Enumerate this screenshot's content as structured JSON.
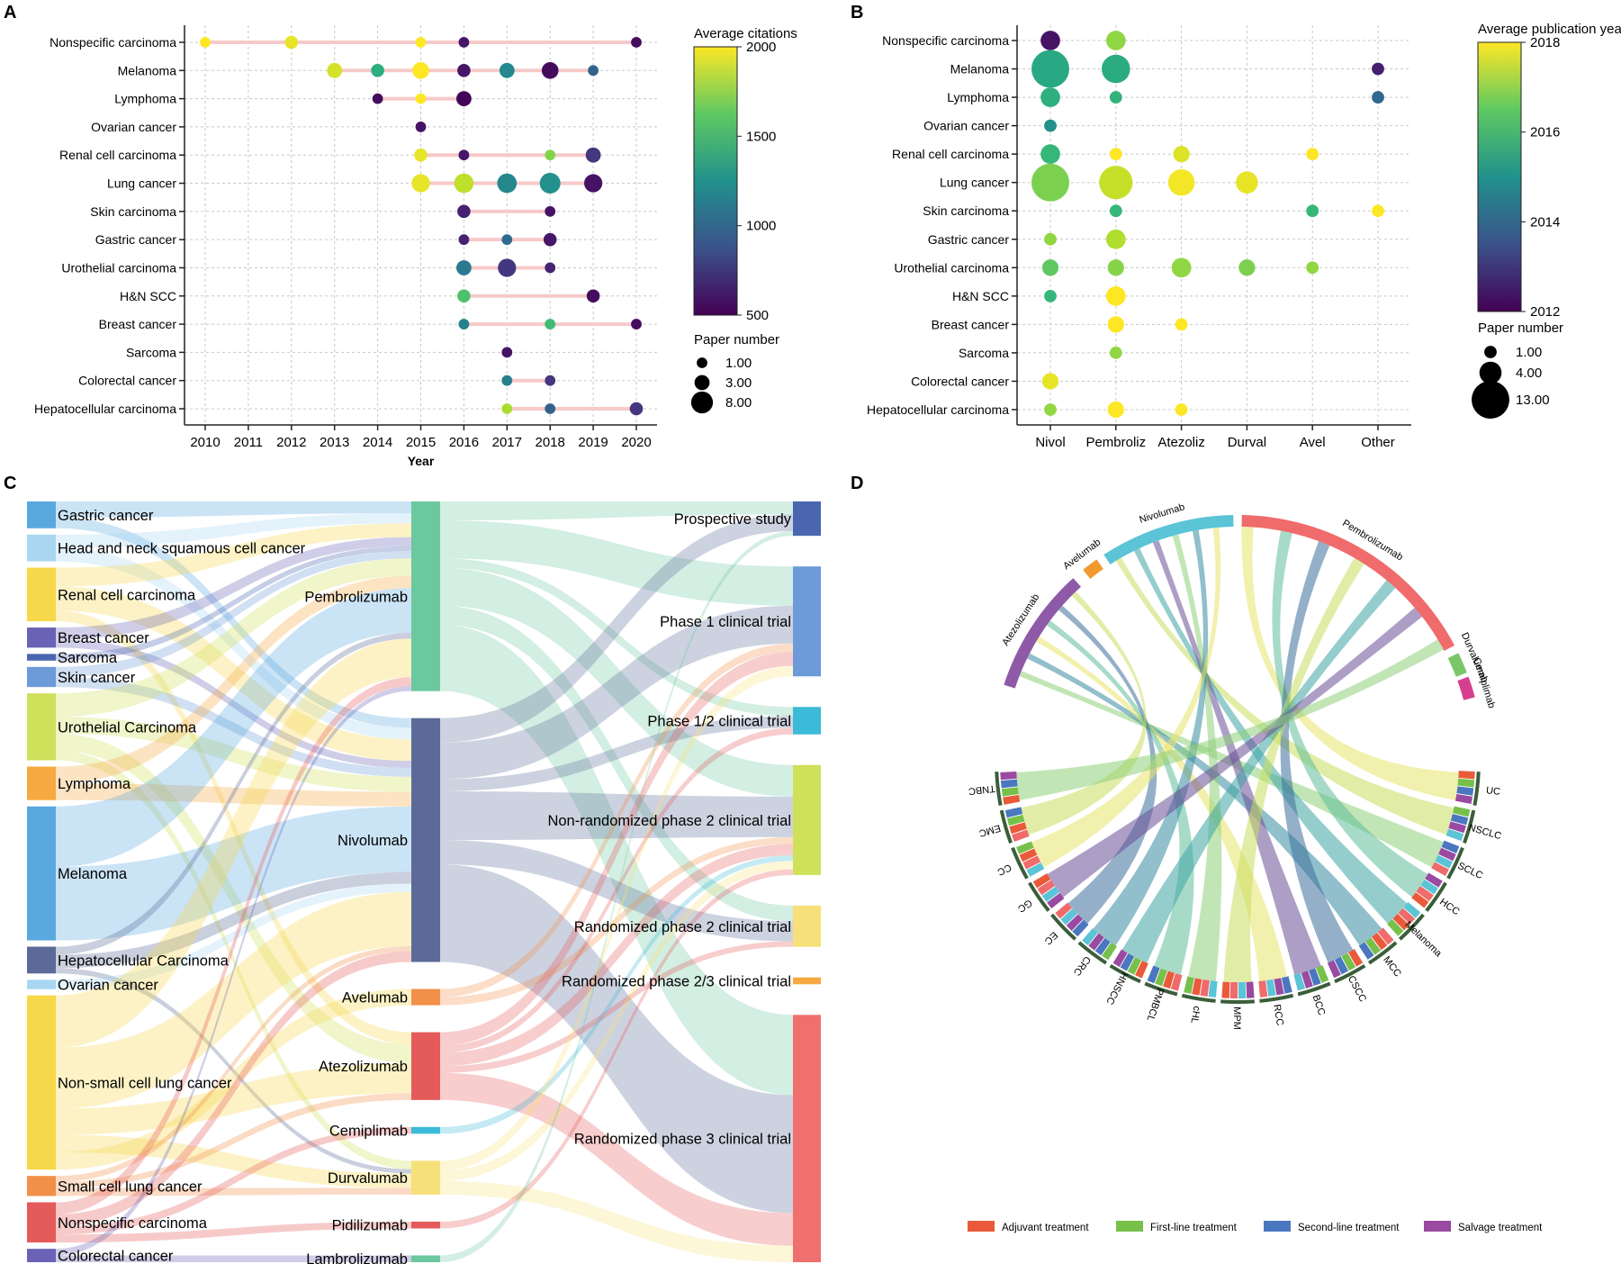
{
  "panels": {
    "a": "A",
    "b": "B",
    "c": "C",
    "d": "D"
  },
  "chart_data": [
    {
      "type": "scatter",
      "panel": "A",
      "xlabel": "Year",
      "ylabel": "",
      "x": [
        "2010",
        "2011",
        "2012",
        "2013",
        "2014",
        "2015",
        "2016",
        "2017",
        "2018",
        "2019",
        "2020"
      ],
      "categories": [
        "Nonspecific carcinoma",
        "Melanoma",
        "Lymphoma",
        "Ovarian cancer",
        "Renal cell carcinoma",
        "Lung cancer",
        "Skin carcinoma",
        "Gastric cancer",
        "Urothelial carcinoma",
        "H&N SCC",
        "Breast cancer",
        "Sarcoma",
        "Colorectal cancer",
        "Hepatocellular carcinoma"
      ],
      "color_title": "Average citations",
      "color_ticks": [
        "2000",
        "1500",
        "1000",
        "500"
      ],
      "color_range": [
        400,
        2000
      ],
      "size_title": "Paper number",
      "size_legend": [
        "1.00",
        "3.00",
        "8.00"
      ],
      "points": [
        {
          "cat": "Nonspecific carcinoma",
          "year": 2010,
          "n": 1,
          "c": 2000
        },
        {
          "cat": "Nonspecific carcinoma",
          "year": 2012,
          "n": 2,
          "c": 1950
        },
        {
          "cat": "Nonspecific carcinoma",
          "year": 2015,
          "n": 1,
          "c": 2000
        },
        {
          "cat": "Nonspecific carcinoma",
          "year": 2016,
          "n": 1,
          "c": 500
        },
        {
          "cat": "Nonspecific carcinoma",
          "year": 2020,
          "n": 1,
          "c": 450
        },
        {
          "cat": "Melanoma",
          "year": 2013,
          "n": 3,
          "c": 1900
        },
        {
          "cat": "Melanoma",
          "year": 2014,
          "n": 2,
          "c": 1400
        },
        {
          "cat": "Melanoma",
          "year": 2015,
          "n": 4,
          "c": 2000
        },
        {
          "cat": "Melanoma",
          "year": 2016,
          "n": 2,
          "c": 500
        },
        {
          "cat": "Melanoma",
          "year": 2017,
          "n": 3,
          "c": 1150
        },
        {
          "cat": "Melanoma",
          "year": 2018,
          "n": 4,
          "c": 450
        },
        {
          "cat": "Melanoma",
          "year": 2019,
          "n": 1,
          "c": 900
        },
        {
          "cat": "Lymphoma",
          "year": 2014,
          "n": 1,
          "c": 450
        },
        {
          "cat": "Lymphoma",
          "year": 2015,
          "n": 1,
          "c": 2000
        },
        {
          "cat": "Lymphoma",
          "year": 2016,
          "n": 3,
          "c": 420
        },
        {
          "cat": "Ovarian cancer",
          "year": 2015,
          "n": 1,
          "c": 480
        },
        {
          "cat": "Renal cell carcinoma",
          "year": 2015,
          "n": 2,
          "c": 1950
        },
        {
          "cat": "Renal cell carcinoma",
          "year": 2016,
          "n": 1,
          "c": 500
        },
        {
          "cat": "Renal cell carcinoma",
          "year": 2018,
          "n": 1,
          "c": 1700
        },
        {
          "cat": "Renal cell carcinoma",
          "year": 2019,
          "n": 3,
          "c": 650
        },
        {
          "cat": "Lung cancer",
          "year": 2015,
          "n": 5,
          "c": 1950
        },
        {
          "cat": "Lung cancer",
          "year": 2016,
          "n": 6,
          "c": 1850
        },
        {
          "cat": "Lung cancer",
          "year": 2017,
          "n": 6,
          "c": 1150
        },
        {
          "cat": "Lung cancer",
          "year": 2018,
          "n": 7,
          "c": 1200
        },
        {
          "cat": "Lung cancer",
          "year": 2019,
          "n": 5,
          "c": 480
        },
        {
          "cat": "Skin carcinoma",
          "year": 2016,
          "n": 2,
          "c": 550
        },
        {
          "cat": "Skin carcinoma",
          "year": 2018,
          "n": 1,
          "c": 480
        },
        {
          "cat": "Gastric cancer",
          "year": 2016,
          "n": 1,
          "c": 550
        },
        {
          "cat": "Gastric cancer",
          "year": 2017,
          "n": 1,
          "c": 950
        },
        {
          "cat": "Gastric cancer",
          "year": 2018,
          "n": 2,
          "c": 500
        },
        {
          "cat": "Urothelial carcinoma",
          "year": 2016,
          "n": 3,
          "c": 1050
        },
        {
          "cat": "Urothelial carcinoma",
          "year": 2017,
          "n": 5,
          "c": 650
        },
        {
          "cat": "Urothelial carcinoma",
          "year": 2018,
          "n": 1,
          "c": 550
        },
        {
          "cat": "H&N SCC",
          "year": 2016,
          "n": 2,
          "c": 1550
        },
        {
          "cat": "H&N SCC",
          "year": 2019,
          "n": 2,
          "c": 450
        },
        {
          "cat": "Breast cancer",
          "year": 2016,
          "n": 1,
          "c": 1100
        },
        {
          "cat": "Breast cancer",
          "year": 2018,
          "n": 1,
          "c": 1500
        },
        {
          "cat": "Breast cancer",
          "year": 2020,
          "n": 1,
          "c": 450
        },
        {
          "cat": "Sarcoma",
          "year": 2017,
          "n": 1,
          "c": 480
        },
        {
          "cat": "Colorectal cancer",
          "year": 2017,
          "n": 1,
          "c": 1100
        },
        {
          "cat": "Colorectal cancer",
          "year": 2018,
          "n": 1,
          "c": 650
        },
        {
          "cat": "Hepatocellular carcinoma",
          "year": 2017,
          "n": 1,
          "c": 1800
        },
        {
          "cat": "Hepatocellular carcinoma",
          "year": 2018,
          "n": 1,
          "c": 900
        },
        {
          "cat": "Hepatocellular carcinoma",
          "year": 2020,
          "n": 2,
          "c": 650
        }
      ]
    },
    {
      "type": "scatter",
      "panel": "B",
      "xlabel": "",
      "x": [
        "Nivol",
        "Pembroliz",
        "Atezoliz",
        "Durval",
        "Avel",
        "Other"
      ],
      "categories": [
        "Nonspecific carcinoma",
        "Melanoma",
        "Lymphoma",
        "Ovarian cancer",
        "Renal cell carcinoma",
        "Lung cancer",
        "Skin carcinoma",
        "Gastric cancer",
        "Urothelial carcinoma",
        "H&N SCC",
        "Breast cancer",
        "Sarcoma",
        "Colorectal cancer",
        "Hepatocellular carcinoma"
      ],
      "color_title": "Average publication year",
      "color_ticks": [
        "2018",
        "2016",
        "2014",
        "2012"
      ],
      "color_range": [
        2012,
        2018
      ],
      "size_title": "Paper number",
      "size_legend": [
        "1.00",
        "4.00",
        "13.00"
      ],
      "points": [
        {
          "cat": "Nonspecific carcinoma",
          "drug": "Nivol",
          "n": 3,
          "c": 2012.3
        },
        {
          "cat": "Nonspecific carcinoma",
          "drug": "Pembroliz",
          "n": 3,
          "c": 2017.0
        },
        {
          "cat": "Melanoma",
          "drug": "Nivol",
          "n": 13,
          "c": 2015.6
        },
        {
          "cat": "Melanoma",
          "drug": "Pembroliz",
          "n": 7,
          "c": 2015.7
        },
        {
          "cat": "Melanoma",
          "drug": "Other",
          "n": 1,
          "c": 2012.5
        },
        {
          "cat": "Lymphoma",
          "drug": "Nivol",
          "n": 3,
          "c": 2015.8
        },
        {
          "cat": "Lymphoma",
          "drug": "Pembroliz",
          "n": 1,
          "c": 2015.9
        },
        {
          "cat": "Lymphoma",
          "drug": "Other",
          "n": 1,
          "c": 2014.0
        },
        {
          "cat": "Ovarian cancer",
          "drug": "Nivol",
          "n": 1,
          "c": 2015.0
        },
        {
          "cat": "Renal cell carcinoma",
          "drug": "Nivol",
          "n": 3,
          "c": 2016.0
        },
        {
          "cat": "Renal cell carcinoma",
          "drug": "Pembroliz",
          "n": 1,
          "c": 2018.0
        },
        {
          "cat": "Renal cell carcinoma",
          "drug": "Atezoliz",
          "n": 2,
          "c": 2017.7
        },
        {
          "cat": "Renal cell carcinoma",
          "drug": "Avel",
          "n": 1,
          "c": 2018.0
        },
        {
          "cat": "Lung cancer",
          "drug": "Nivol",
          "n": 13,
          "c": 2016.8
        },
        {
          "cat": "Lung cancer",
          "drug": "Pembroliz",
          "n": 10,
          "c": 2017.5
        },
        {
          "cat": "Lung cancer",
          "drug": "Atezoliz",
          "n": 6,
          "c": 2017.9
        },
        {
          "cat": "Lung cancer",
          "drug": "Durval",
          "n": 4,
          "c": 2017.8
        },
        {
          "cat": "Skin carcinoma",
          "drug": "Pembroliz",
          "n": 1,
          "c": 2016.0
        },
        {
          "cat": "Skin carcinoma",
          "drug": "Avel",
          "n": 1,
          "c": 2016.0
        },
        {
          "cat": "Skin carcinoma",
          "drug": "Other",
          "n": 1,
          "c": 2018.0
        },
        {
          "cat": "Gastric cancer",
          "drug": "Nivol",
          "n": 1,
          "c": 2017.0
        },
        {
          "cat": "Gastric cancer",
          "drug": "Pembroliz",
          "n": 3,
          "c": 2017.3
        },
        {
          "cat": "Urothelial carcinoma",
          "drug": "Nivol",
          "n": 2,
          "c": 2016.5
        },
        {
          "cat": "Urothelial carcinoma",
          "drug": "Pembroliz",
          "n": 2,
          "c": 2016.9
        },
        {
          "cat": "Urothelial carcinoma",
          "drug": "Atezoliz",
          "n": 3,
          "c": 2017.0
        },
        {
          "cat": "Urothelial carcinoma",
          "drug": "Durval",
          "n": 2,
          "c": 2016.8
        },
        {
          "cat": "Urothelial carcinoma",
          "drug": "Avel",
          "n": 1,
          "c": 2017.0
        },
        {
          "cat": "H&N SCC",
          "drug": "Nivol",
          "n": 1,
          "c": 2016.0
        },
        {
          "cat": "H&N SCC",
          "drug": "Pembroliz",
          "n": 3,
          "c": 2018.0
        },
        {
          "cat": "Breast cancer",
          "drug": "Pembroliz",
          "n": 2,
          "c": 2018.0
        },
        {
          "cat": "Breast cancer",
          "drug": "Atezoliz",
          "n": 1,
          "c": 2018.0
        },
        {
          "cat": "Sarcoma",
          "drug": "Pembroliz",
          "n": 1,
          "c": 2017.0
        },
        {
          "cat": "Colorectal cancer",
          "drug": "Nivol",
          "n": 2,
          "c": 2017.8
        },
        {
          "cat": "Hepatocellular carcinoma",
          "drug": "Nivol",
          "n": 1,
          "c": 2017.0
        },
        {
          "cat": "Hepatocellular carcinoma",
          "drug": "Pembroliz",
          "n": 2,
          "c": 2018.0
        },
        {
          "cat": "Hepatocellular carcinoma",
          "drug": "Atezoliz",
          "n": 1,
          "c": 2018.0
        }
      ]
    },
    {
      "type": "sankey",
      "panel": "C",
      "sources": [
        {
          "name": "Gastric cancer",
          "w": 2,
          "color": "#5aa8e0"
        },
        {
          "name": "Head and neck squamous cell cancer",
          "w": 2,
          "color": "#a9d7f2"
        },
        {
          "name": "Renal cell carcinoma",
          "w": 4,
          "color": "#f7d84a"
        },
        {
          "name": "Breast cancer",
          "w": 1.5,
          "color": "#6a63b5"
        },
        {
          "name": "Sarcoma",
          "w": 0.5,
          "color": "#4a66b0"
        },
        {
          "name": "Skin cancer",
          "w": 1.5,
          "color": "#6d9ad8"
        },
        {
          "name": "Urothelial Carcinoma",
          "w": 5,
          "color": "#cfe05a"
        },
        {
          "name": "Lymphoma",
          "w": 2.5,
          "color": "#f6a941"
        },
        {
          "name": "Melanoma",
          "w": 10,
          "color": "#5aa8e0"
        },
        {
          "name": "Hepatocellular Carcinoma",
          "w": 2,
          "color": "#5b6a98"
        },
        {
          "name": "Ovarian cancer",
          "w": 0.7,
          "color": "#a9d7f2"
        },
        {
          "name": "Non-small cell lung cancer",
          "w": 13,
          "color": "#f7d84a"
        },
        {
          "name": "Small cell lung cancer",
          "w": 1.5,
          "color": "#f2904a"
        },
        {
          "name": "Nonspecific carcinoma",
          "w": 3,
          "color": "#e55a5a"
        },
        {
          "name": "Colorectal cancer",
          "w": 1,
          "color": "#6a63b5"
        }
      ],
      "drugs": [
        {
          "name": "Pembrolizumab",
          "w": 14,
          "color": "#6cc89e"
        },
        {
          "name": "Nivolumab",
          "w": 18,
          "color": "#5b6a98"
        },
        {
          "name": "Avelumab",
          "w": 1.2,
          "color": "#f2904a"
        },
        {
          "name": "Atezolizumab",
          "w": 5,
          "color": "#e55a5a"
        },
        {
          "name": "Cemiplimab",
          "w": 0.5,
          "color": "#3bbbd8"
        },
        {
          "name": "Durvalumab",
          "w": 2.5,
          "color": "#f7e07a"
        },
        {
          "name": "Pidilizumab",
          "w": 0.5,
          "color": "#e55a5a"
        },
        {
          "name": "Lambrolizumab",
          "w": 0.5,
          "color": "#6cc89e"
        }
      ],
      "outcomes": [
        {
          "name": "Prospective study",
          "w": 2.5,
          "color": "#4a66b0"
        },
        {
          "name": "Phase 1 clinical trial",
          "w": 8,
          "color": "#6d9ad8"
        },
        {
          "name": "Phase 1/2 clinical trial",
          "w": 2,
          "color": "#3bbbd8"
        },
        {
          "name": "Non-randomized phase 2 clinical trial",
          "w": 8,
          "color": "#cfe05a"
        },
        {
          "name": "Randomized phase 2 clinical trial",
          "w": 3,
          "color": "#f7e07a"
        },
        {
          "name": "Randomized phase 2/3 clinical trial",
          "w": 0.5,
          "color": "#f6a941"
        },
        {
          "name": "Randomized phase 3 clinical trial",
          "w": 18,
          "color": "#f07070"
        }
      ]
    },
    {
      "type": "chord",
      "panel": "D",
      "drugs": [
        {
          "name": "Pembrolizumab",
          "color": "#f06b6b"
        },
        {
          "name": "Durvalumab",
          "color": "#7cc66a"
        },
        {
          "name": "Cemiplimab",
          "color": "#d63f8f"
        },
        {
          "name": "Atezolizumab",
          "color": "#8e5aa8"
        },
        {
          "name": "Avelumab",
          "color": "#f29a2e"
        },
        {
          "name": "Nivolumab",
          "color": "#5bc4d6"
        }
      ],
      "cancers": [
        "UC",
        "NSCLC",
        "SCLC",
        "HCC",
        "Melanoma",
        "MCC",
        "CSCC",
        "BCC",
        "RCC",
        "MPM",
        "cHL",
        "PMBCL",
        "HNSCC",
        "CRC",
        "EC",
        "GC",
        "CC",
        "EMC",
        "TNBC"
      ],
      "legend": [
        {
          "label": "Adjuvant treatment",
          "color": "#ea5a3a"
        },
        {
          "label": "First-line treatment",
          "color": "#77c04a"
        },
        {
          "label": "Second-line treatment",
          "color": "#4a77c0"
        },
        {
          "label": "Salvage treatment",
          "color": "#9a4aa0"
        }
      ]
    }
  ]
}
